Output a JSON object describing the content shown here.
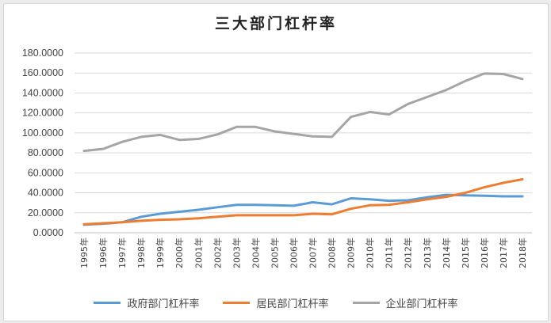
{
  "chart_data": {
    "type": "line",
    "title": "三大部门杠杆率",
    "categories": [
      "1995年",
      "1996年",
      "1997年",
      "1998年",
      "1999年",
      "2000年",
      "2001年",
      "2002年",
      "2003年",
      "2004年",
      "2005年",
      "2006年",
      "2007年",
      "2008年",
      "2009年",
      "2010年",
      "2011年",
      "2012年",
      "2013年",
      "2014年",
      "2015年",
      "2016年",
      "2017年",
      "2018年"
    ],
    "y_tick_labels": [
      "0.0000",
      "20.0000",
      "40.0000",
      "60.0000",
      "80.0000",
      "100.0000",
      "120.0000",
      "140.0000",
      "160.0000",
      "180.0000"
    ],
    "ylim": [
      0,
      180
    ],
    "grid": true,
    "legend_position": "bottom",
    "series": [
      {
        "name": "政府部门杠杆率",
        "color": "#5b9bd5",
        "values": [
          8,
          9,
          10.5,
          16,
          19,
          21,
          23,
          25.5,
          28,
          28,
          27.5,
          27,
          30.5,
          28.5,
          34.5,
          33.5,
          32,
          32.5,
          35.5,
          38,
          37.5,
          37,
          36.5,
          36.5
        ]
      },
      {
        "name": "居民部门杠杆率",
        "color": "#ed7d31",
        "values": [
          8.5,
          9.5,
          10.5,
          12,
          13,
          13.5,
          14.5,
          16,
          17.5,
          17.5,
          17.5,
          17.5,
          19,
          18.5,
          24,
          27.5,
          28,
          30.5,
          33.5,
          36,
          40,
          45.5,
          50,
          53.5
        ]
      },
      {
        "name": "企业部门杠杆率",
        "color": "#a5a5a5",
        "values": [
          82,
          84,
          91,
          96,
          98,
          93,
          94,
          98.5,
          106,
          106,
          101.5,
          99,
          96.5,
          96,
          116,
          121,
          118.5,
          129,
          136,
          143,
          152,
          159.5,
          159,
          154
        ]
      }
    ]
  }
}
